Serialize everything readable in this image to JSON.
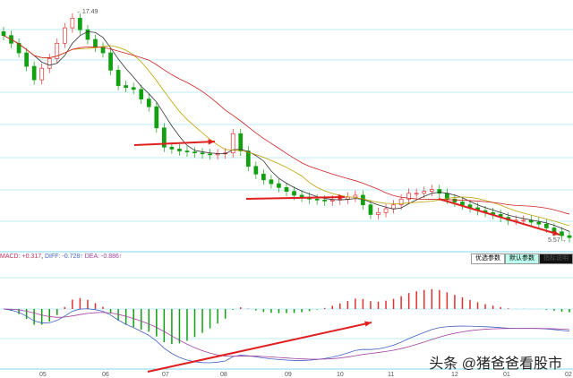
{
  "chart_data": {
    "type": "candlestick",
    "title": "",
    "max_label": "17.49",
    "min_label": "5.57",
    "ylim": [
      5.2,
      18.0
    ],
    "x_tick_labels": [
      "05",
      "06",
      "07",
      "08",
      "09",
      "10",
      "11",
      "12",
      "01",
      "02"
    ],
    "closes": [
      16.2,
      15.8,
      15.3,
      14.6,
      13.9,
      14.5,
      15.0,
      15.8,
      16.6,
      17.1,
      16.5,
      16.0,
      15.6,
      15.3,
      14.4,
      13.6,
      13.5,
      13.4,
      12.9,
      12.5,
      11.4,
      10.4,
      10.3,
      10.2,
      10.15,
      10.1,
      10.05,
      10.0,
      10.05,
      10.1,
      11.1,
      10.2,
      9.4,
      9.0,
      8.7,
      8.5,
      8.3,
      8.1,
      7.9,
      7.8,
      7.7,
      7.65,
      7.6,
      7.65,
      7.7,
      7.8,
      7.9,
      7.4,
      6.9,
      7.0,
      7.2,
      7.4,
      7.7,
      8.0,
      8.0,
      8.1,
      8.2,
      8.0,
      7.7,
      7.55,
      7.4,
      7.25,
      7.1,
      7.0,
      6.9,
      6.75,
      6.6,
      6.6,
      6.6,
      6.5,
      6.4,
      6.2,
      6.0,
      5.8,
      5.7
    ],
    "ma_periods": [
      5,
      10,
      20
    ],
    "macd": {
      "macd": "MACD: +0.317",
      "diff": "DIFF: -0.728↑",
      "dea": "DEA: -0.886↑"
    }
  },
  "buttons": [
    "优选参数",
    "默认参数",
    "指标说明"
  ],
  "watermark": "头条 @猪爸爸看股市",
  "colors": {
    "up": "#e03030",
    "down": "#10a010",
    "ma5": "#333333",
    "ma10": "#c0a000",
    "ma20": "#d02020",
    "diff": "#4060c0",
    "dea": "#a040a0",
    "grid": "#7fd8e8"
  }
}
